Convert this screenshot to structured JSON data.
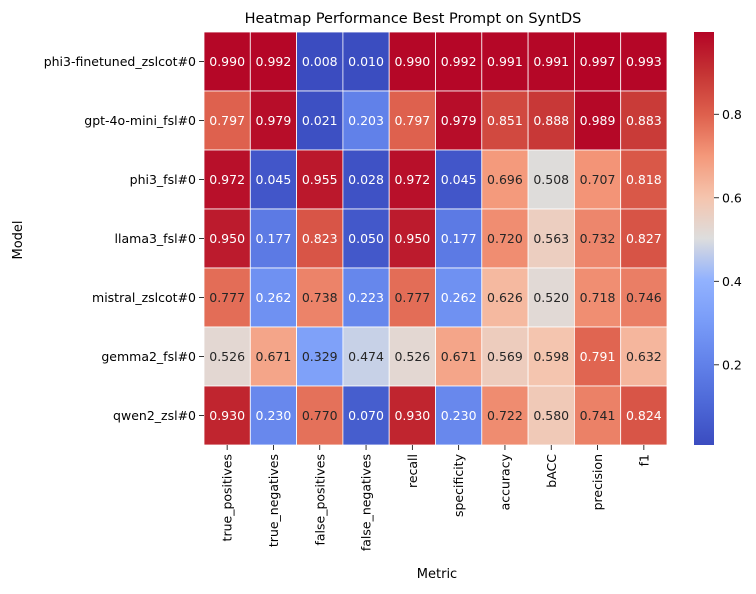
{
  "chart_data": {
    "type": "heatmap",
    "title": "Heatmap Performance Best Prompt on SyntDS",
    "xlabel": "Metric",
    "ylabel": "Model",
    "x": [
      "true_positives",
      "true_negatives",
      "false_positives",
      "false_negatives",
      "recall",
      "specificity",
      "accuracy",
      "bACC",
      "precision",
      "f1"
    ],
    "y": [
      "phi3-finetuned_zslcot#0",
      "gpt-4o-mini_fsl#0",
      "phi3_fsl#0",
      "llama3_fsl#0",
      "mistral_zslcot#0",
      "gemma2_fsl#0",
      "qwen2_zsl#0"
    ],
    "values": [
      [
        0.99,
        0.992,
        0.008,
        0.01,
        0.99,
        0.992,
        0.991,
        0.991,
        0.997,
        0.993
      ],
      [
        0.797,
        0.979,
        0.021,
        0.203,
        0.797,
        0.979,
        0.851,
        0.888,
        0.989,
        0.883
      ],
      [
        0.972,
        0.045,
        0.955,
        0.028,
        0.972,
        0.045,
        0.696,
        0.508,
        0.707,
        0.818
      ],
      [
        0.95,
        0.177,
        0.823,
        0.05,
        0.95,
        0.177,
        0.72,
        0.563,
        0.732,
        0.827
      ],
      [
        0.777,
        0.262,
        0.738,
        0.223,
        0.777,
        0.262,
        0.626,
        0.52,
        0.718,
        0.746
      ],
      [
        0.526,
        0.671,
        0.329,
        0.474,
        0.526,
        0.671,
        0.569,
        0.598,
        0.791,
        0.632
      ],
      [
        0.93,
        0.23,
        0.77,
        0.07,
        0.93,
        0.23,
        0.722,
        0.58,
        0.741,
        0.824
      ]
    ],
    "value_format": "3 decimals",
    "colormap": "coolwarm",
    "vmin": 0.008,
    "vmax": 0.997,
    "colorbar_ticks": [
      0.2,
      0.4,
      0.6,
      0.8
    ],
    "cell_border_color": "#ffffff",
    "annotation_light_color": "#ffffff",
    "annotation_dark_color": "#262626"
  }
}
